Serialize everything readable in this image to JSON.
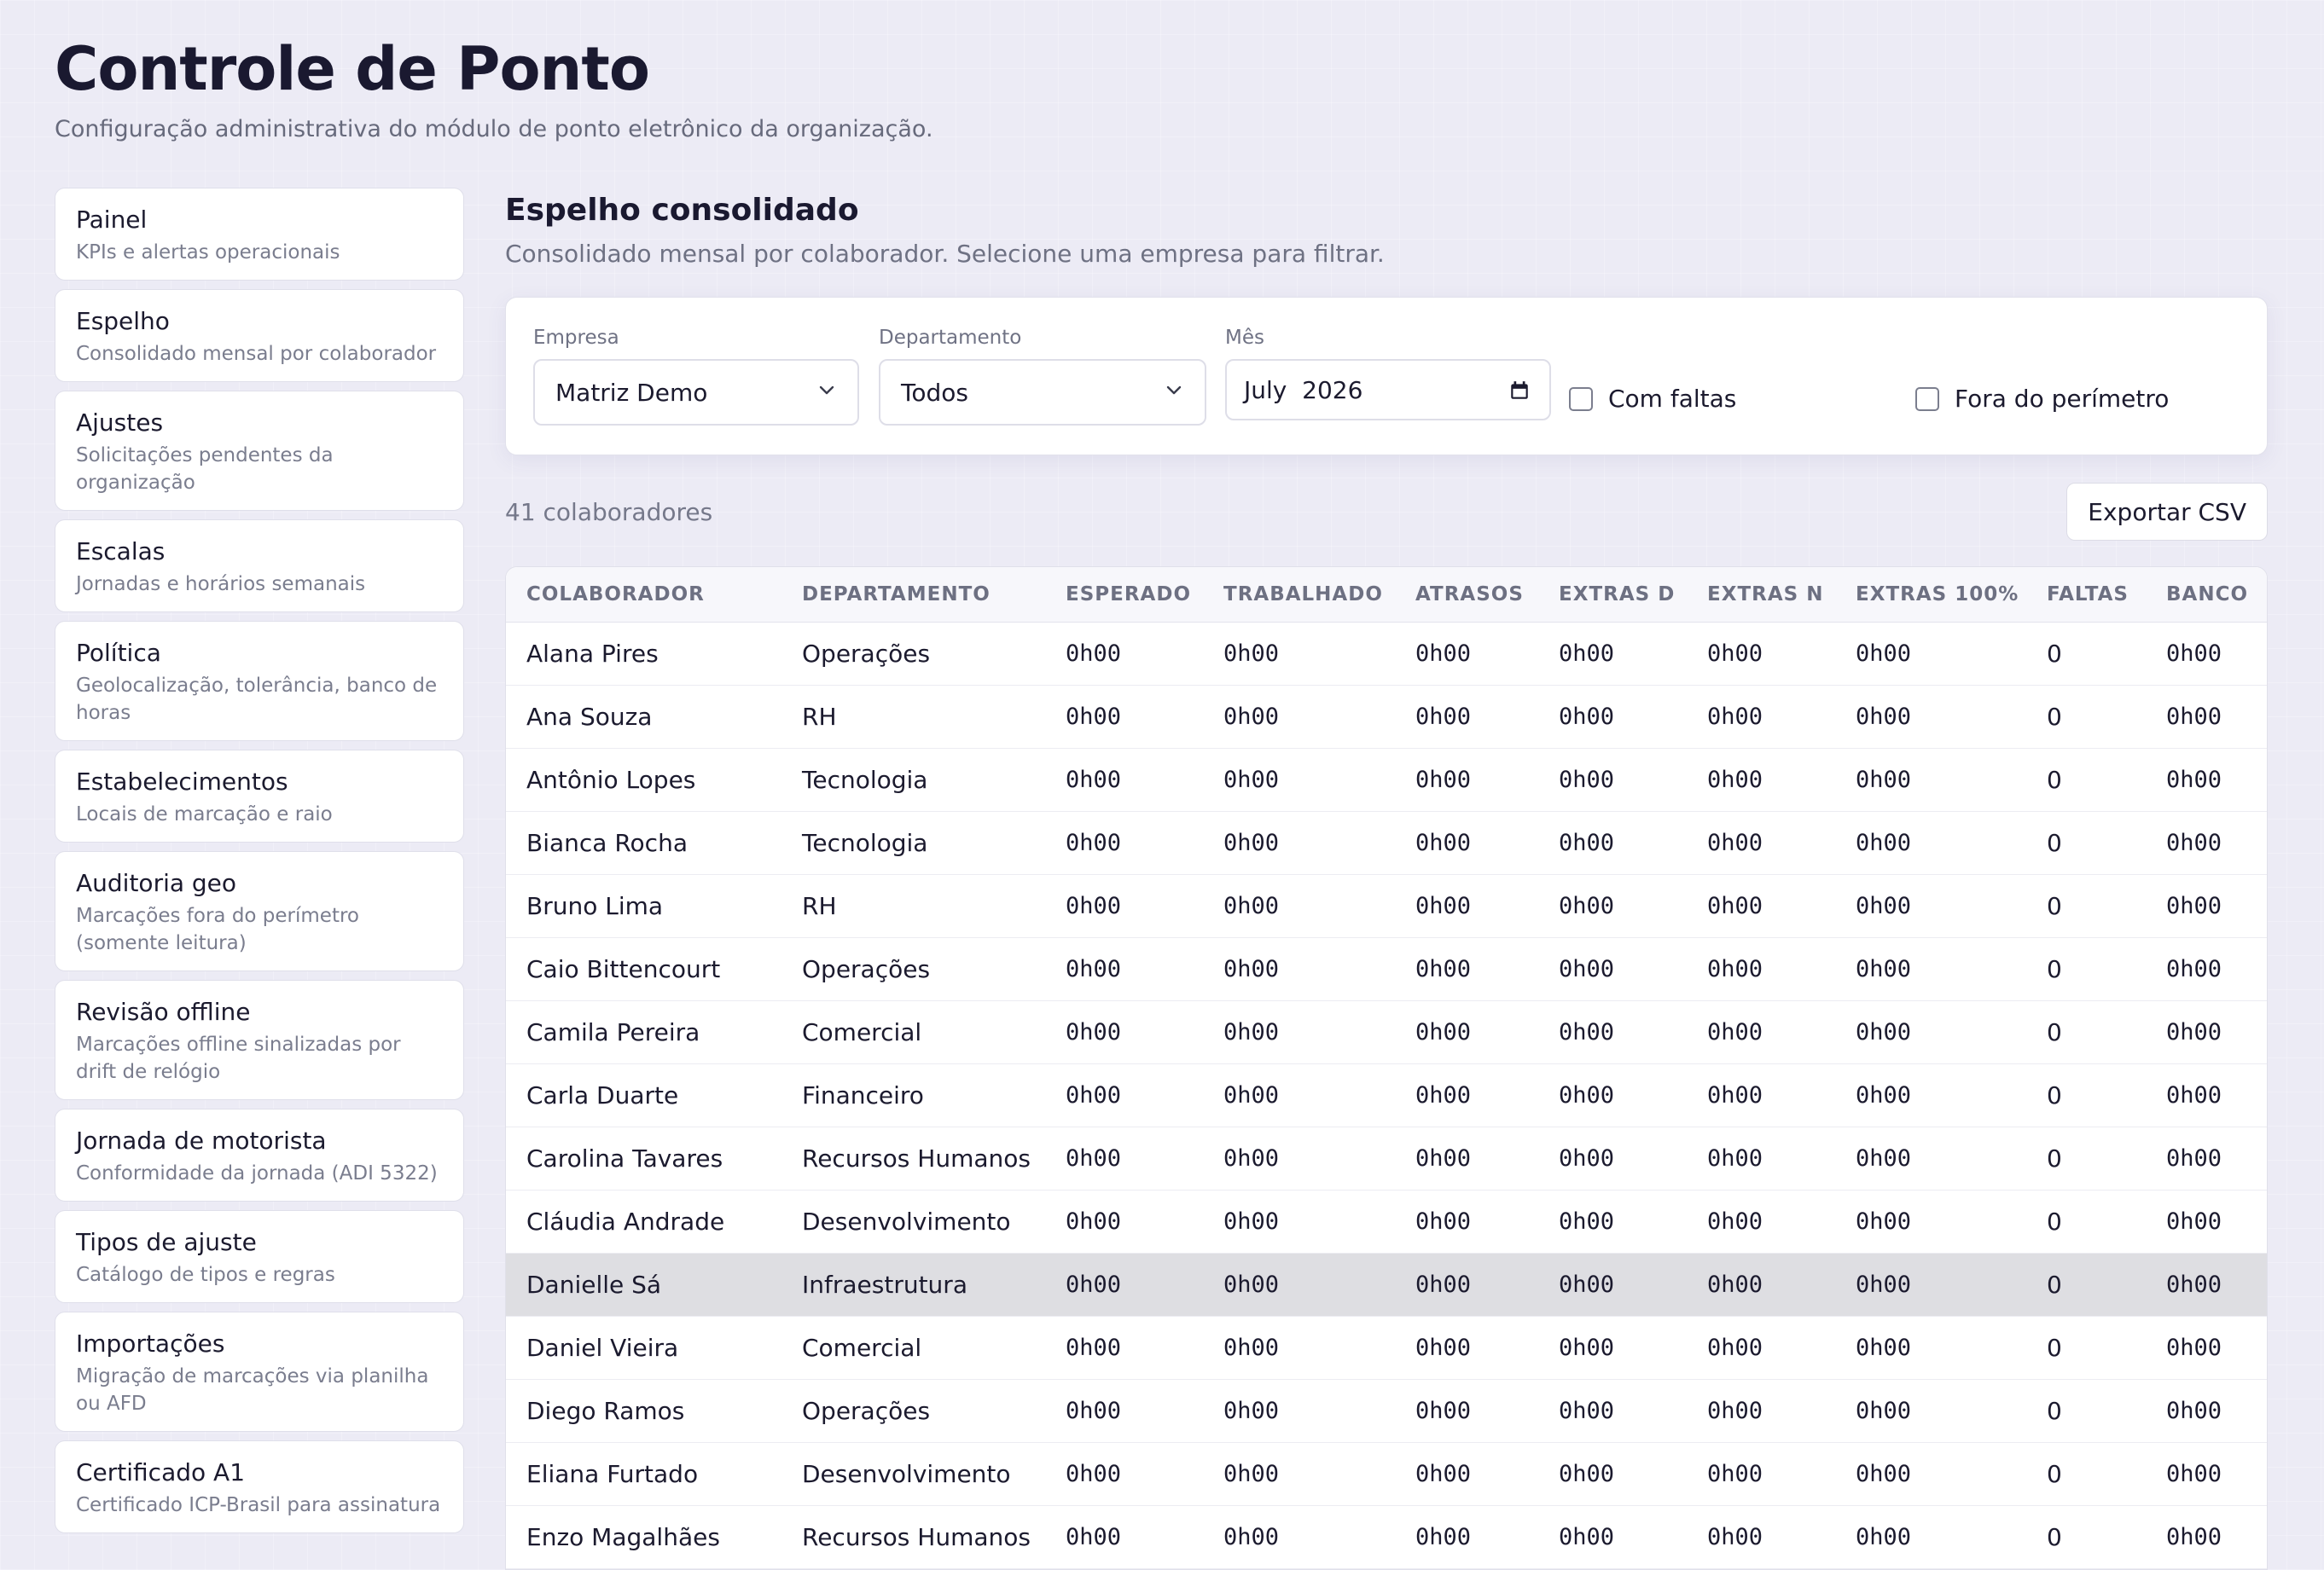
{
  "header": {
    "title": "Controle de Ponto",
    "subtitle": "Configuração administrativa do módulo de ponto eletrônico da organização."
  },
  "sidebar": {
    "items": [
      {
        "label": "Painel",
        "desc": "KPIs e alertas operacionais"
      },
      {
        "label": "Espelho",
        "desc": "Consolidado mensal por colaborador"
      },
      {
        "label": "Ajustes",
        "desc": "Solicitações pendentes da organização"
      },
      {
        "label": "Escalas",
        "desc": "Jornadas e horários semanais"
      },
      {
        "label": "Política",
        "desc": "Geolocalização, tolerância, banco de horas"
      },
      {
        "label": "Estabelecimentos",
        "desc": "Locais de marcação e raio"
      },
      {
        "label": "Auditoria geo",
        "desc": "Marcações fora do perímetro (somente leitura)"
      },
      {
        "label": "Revisão offline",
        "desc": "Marcações offline sinalizadas por drift de relógio"
      },
      {
        "label": "Jornada de motorista",
        "desc": "Conformidade da jornada (ADI 5322)"
      },
      {
        "label": "Tipos de ajuste",
        "desc": "Catálogo de tipos e regras"
      },
      {
        "label": "Importações",
        "desc": "Migração de marcações via planilha ou AFD"
      },
      {
        "label": "Certificado A1",
        "desc": "Certificado ICP-Brasil para assinatura"
      }
    ]
  },
  "main": {
    "title": "Espelho consolidado",
    "subtitle": "Consolidado mensal por colaborador. Selecione uma empresa para filtrar."
  },
  "filters": {
    "empresa_label": "Empresa",
    "empresa_value": "Matriz Demo",
    "departamento_label": "Departamento",
    "departamento_value": "Todos",
    "mes_label": "Mês",
    "mes_value": "July  2026",
    "com_faltas_label": "Com faltas",
    "fora_perimetro_label": "Fora do perímetro"
  },
  "toolbar": {
    "count": "41 colaboradores",
    "export_label": "Exportar CSV"
  },
  "table": {
    "columns": [
      "COLABORADOR",
      "DEPARTAMENTO",
      "ESPERADO",
      "TRABALHADO",
      "ATRASOS",
      "EXTRAS D",
      "EXTRAS N",
      "EXTRAS 100%",
      "FALTAS",
      "BANCO"
    ],
    "rows": [
      [
        "Alana Pires",
        "Operações",
        "0h00",
        "0h00",
        "0h00",
        "0h00",
        "0h00",
        "0h00",
        "0",
        "0h00"
      ],
      [
        "Ana Souza",
        "RH",
        "0h00",
        "0h00",
        "0h00",
        "0h00",
        "0h00",
        "0h00",
        "0",
        "0h00"
      ],
      [
        "Antônio Lopes",
        "Tecnologia",
        "0h00",
        "0h00",
        "0h00",
        "0h00",
        "0h00",
        "0h00",
        "0",
        "0h00"
      ],
      [
        "Bianca Rocha",
        "Tecnologia",
        "0h00",
        "0h00",
        "0h00",
        "0h00",
        "0h00",
        "0h00",
        "0",
        "0h00"
      ],
      [
        "Bruno Lima",
        "RH",
        "0h00",
        "0h00",
        "0h00",
        "0h00",
        "0h00",
        "0h00",
        "0",
        "0h00"
      ],
      [
        "Caio Bittencourt",
        "Operações",
        "0h00",
        "0h00",
        "0h00",
        "0h00",
        "0h00",
        "0h00",
        "0",
        "0h00"
      ],
      [
        "Camila Pereira",
        "Comercial",
        "0h00",
        "0h00",
        "0h00",
        "0h00",
        "0h00",
        "0h00",
        "0",
        "0h00"
      ],
      [
        "Carla Duarte",
        "Financeiro",
        "0h00",
        "0h00",
        "0h00",
        "0h00",
        "0h00",
        "0h00",
        "0",
        "0h00"
      ],
      [
        "Carolina Tavares",
        "Recursos Humanos",
        "0h00",
        "0h00",
        "0h00",
        "0h00",
        "0h00",
        "0h00",
        "0",
        "0h00"
      ],
      [
        "Cláudia Andrade",
        "Desenvolvimento",
        "0h00",
        "0h00",
        "0h00",
        "0h00",
        "0h00",
        "0h00",
        "0",
        "0h00"
      ],
      [
        "Danielle Sá",
        "Infraestrutura",
        "0h00",
        "0h00",
        "0h00",
        "0h00",
        "0h00",
        "0h00",
        "0",
        "0h00"
      ],
      [
        "Daniel Vieira",
        "Comercial",
        "0h00",
        "0h00",
        "0h00",
        "0h00",
        "0h00",
        "0h00",
        "0",
        "0h00"
      ],
      [
        "Diego Ramos",
        "Operações",
        "0h00",
        "0h00",
        "0h00",
        "0h00",
        "0h00",
        "0h00",
        "0",
        "0h00"
      ],
      [
        "Eliana Furtado",
        "Desenvolvimento",
        "0h00",
        "0h00",
        "0h00",
        "0h00",
        "0h00",
        "0h00",
        "0",
        "0h00"
      ],
      [
        "Enzo Magalhães",
        "Recursos Humanos",
        "0h00",
        "0h00",
        "0h00",
        "0h00",
        "0h00",
        "0h00",
        "0",
        "0h00"
      ]
    ],
    "highlighted_row": 10
  }
}
